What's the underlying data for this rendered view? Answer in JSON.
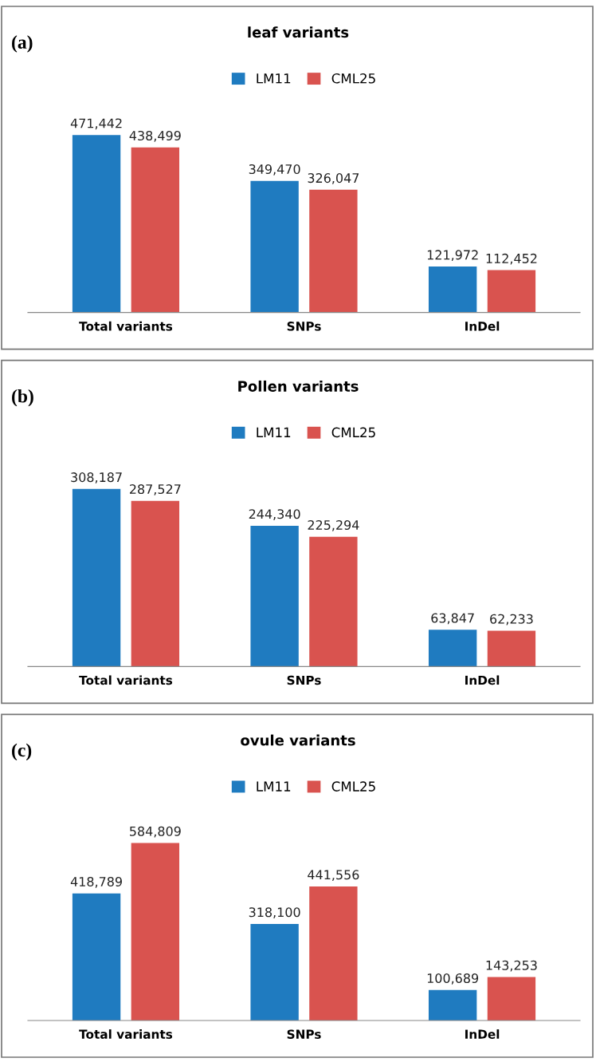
{
  "chart_data": [
    {
      "type": "bar",
      "title": "leaf variants",
      "annotations": [
        "(a)"
      ],
      "categories": [
        "Total variants",
        "SNPs",
        "InDel"
      ],
      "legend": "top",
      "series": [
        {
          "name": "LM11",
          "color": "#1f7bc0",
          "values": [
            471442,
            349470,
            121972
          ],
          "value_labels": [
            "471,442",
            "349,470",
            "121,972"
          ]
        },
        {
          "name": "CML25",
          "color": "#d9534f",
          "values": [
            438499,
            326047,
            112452
          ],
          "value_labels": [
            "438,499",
            "326,047",
            "112,452"
          ]
        }
      ]
    },
    {
      "type": "bar",
      "title": "Pollen variants",
      "annotations": [
        "(b)"
      ],
      "categories": [
        "Total variants",
        "SNPs",
        "InDel"
      ],
      "legend": "top",
      "series": [
        {
          "name": "LM11",
          "color": "#1f7bc0",
          "values": [
            308187,
            244340,
            63847
          ],
          "value_labels": [
            "308,187",
            "244,340",
            "63,847"
          ]
        },
        {
          "name": "CML25",
          "color": "#d9534f",
          "values": [
            287527,
            225294,
            62233
          ],
          "value_labels": [
            "287,527",
            "225,294",
            "62,233"
          ]
        }
      ]
    },
    {
      "type": "bar",
      "title": "ovule variants",
      "annotations": [
        "(c)"
      ],
      "categories": [
        "Total variants",
        "SNPs",
        "InDel"
      ],
      "legend": "top",
      "series": [
        {
          "name": "LM11",
          "color": "#1f7bc0",
          "values": [
            418789,
            318100,
            100689
          ],
          "value_labels": [
            "418,789",
            "318,100",
            "100,689"
          ]
        },
        {
          "name": "CML25",
          "color": "#d9534f",
          "values": [
            584809,
            441556,
            143253
          ],
          "value_labels": [
            "584,809",
            "441,556",
            "143,253"
          ]
        }
      ]
    }
  ]
}
